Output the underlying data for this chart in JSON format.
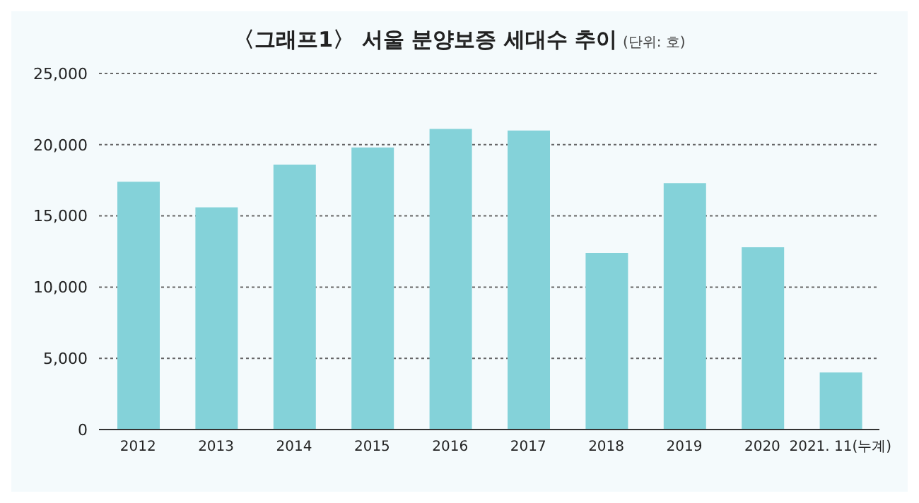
{
  "chart_data": {
    "type": "bar",
    "title": "〈그래프1〉 서울 분양보증 세대수 추이",
    "subtitle": "(단위: 호)",
    "categories": [
      "2012",
      "2013",
      "2014",
      "2015",
      "2016",
      "2017",
      "2018",
      "2019",
      "2020",
      "2021. 11(누계)"
    ],
    "values": [
      17400,
      15600,
      18600,
      19800,
      21100,
      21000,
      12400,
      17300,
      12800,
      4000
    ],
    "color": "#84d2d9",
    "ylim": [
      0,
      25000
    ],
    "yticks": [
      0,
      {
        "value": 5000,
        "label": "5,000"
      },
      {
        "value": 10000,
        "label": "10,000"
      },
      {
        "value": 15000,
        "label": "15,000"
      },
      {
        "value": 20000,
        "label": "20,000"
      },
      {
        "value": 25000,
        "label": "25,000"
      }
    ],
    "grid": "y"
  }
}
